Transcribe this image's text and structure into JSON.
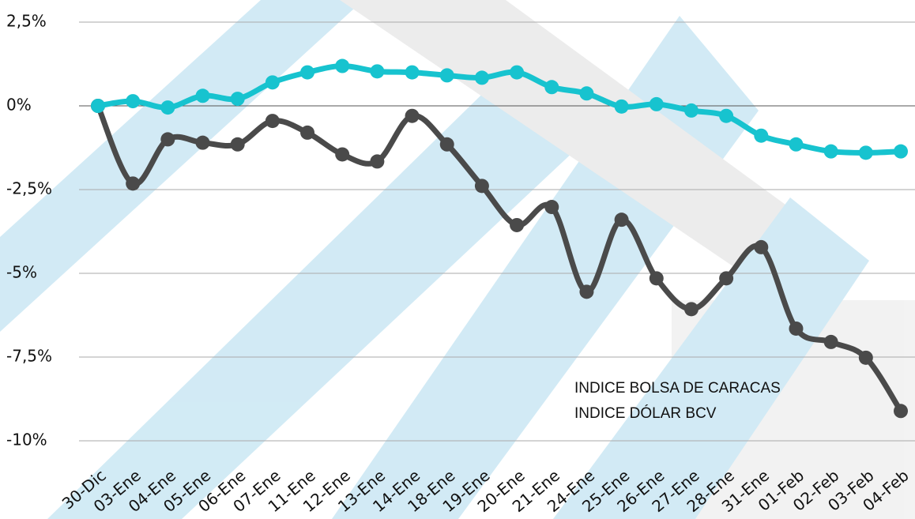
{
  "chart_data": {
    "type": "line",
    "categories": [
      "30-Dic",
      "03-Ene",
      "04-Ene",
      "05-Ene",
      "06-Ene",
      "07-Ene",
      "11-Ene",
      "12-Ene",
      "13-Ene",
      "14-Ene",
      "18-Ene",
      "19-Ene",
      "20-Ene",
      "21-Ene",
      "24-Ene",
      "25-Ene",
      "26-Ene",
      "27-Ene",
      "28-Ene",
      "31-Ene",
      "01-Feb",
      "02-Feb",
      "03-Feb",
      "04-Feb"
    ],
    "series": [
      {
        "name": "INDICE BOLSA DE CARACAS",
        "color": "#4a4a4a",
        "values": [
          0,
          -2.32,
          -1.0,
          -1.1,
          -1.15,
          -0.45,
          -0.8,
          -1.45,
          -1.66,
          -0.3,
          -1.15,
          -2.39,
          -3.56,
          -3.02,
          -5.55,
          -3.4,
          -5.15,
          -6.07,
          -5.15,
          -4.22,
          -6.65,
          -7.05,
          -7.52,
          -9.11
        ]
      },
      {
        "name": "INDICE DÓLAR BCV",
        "color": "#17c3cf",
        "values": [
          0,
          0.14,
          -0.05,
          0.3,
          0.21,
          0.7,
          1.0,
          1.19,
          1.03,
          1.0,
          0.91,
          0.84,
          1.0,
          0.56,
          0.37,
          -0.02,
          0.05,
          -0.14,
          -0.3,
          -0.89,
          -1.15,
          -1.36,
          -1.4,
          -1.36
        ]
      }
    ],
    "ylim": [
      -10,
      2.5
    ],
    "yticks": [
      {
        "value": 2.5,
        "label": "2,5%"
      },
      {
        "value": 0,
        "label": "0%"
      },
      {
        "value": -2.5,
        "label": "-2,5%"
      },
      {
        "value": -5,
        "label": "-5%"
      },
      {
        "value": -7.5,
        "label": "-7,5%"
      },
      {
        "value": -10,
        "label": "-10%"
      }
    ],
    "grid": true
  }
}
